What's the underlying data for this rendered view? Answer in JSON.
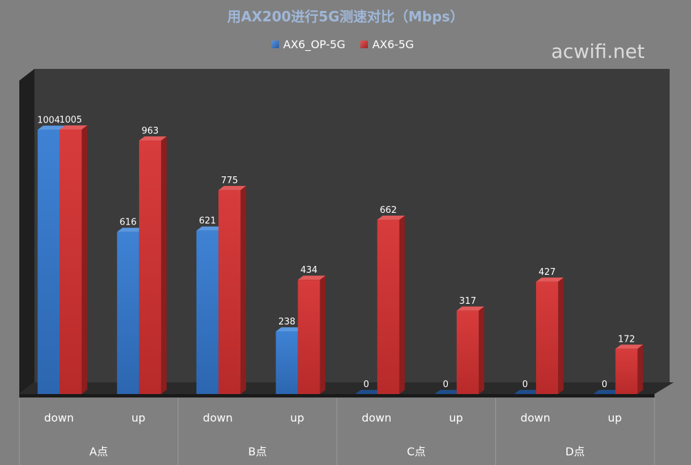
{
  "chart_data": {
    "type": "bar",
    "title": "用AX200进行5G测速对比（Mbps）",
    "groups": [
      "A点",
      "B点",
      "C点",
      "D点"
    ],
    "categories": [
      "down",
      "up",
      "down",
      "up",
      "down",
      "up",
      "down",
      "up"
    ],
    "series": [
      {
        "name": "AX6_OP-5G",
        "values": [
          1004,
          616,
          621,
          238,
          0,
          0,
          0,
          0
        ]
      },
      {
        "name": "AX6-5G",
        "values": [
          1005,
          963,
          775,
          434,
          662,
          317,
          427,
          172
        ]
      }
    ],
    "ylim": [
      0,
      1005
    ],
    "grid": false,
    "legend_position": "top",
    "data_labels": true
  },
  "colors": {
    "background": "#808080",
    "plot_area": "#3b3b3b",
    "series_1": "#3a78c8",
    "series_2": "#d03838",
    "title": "#9fb7d8"
  },
  "watermark": "acwifi.net"
}
